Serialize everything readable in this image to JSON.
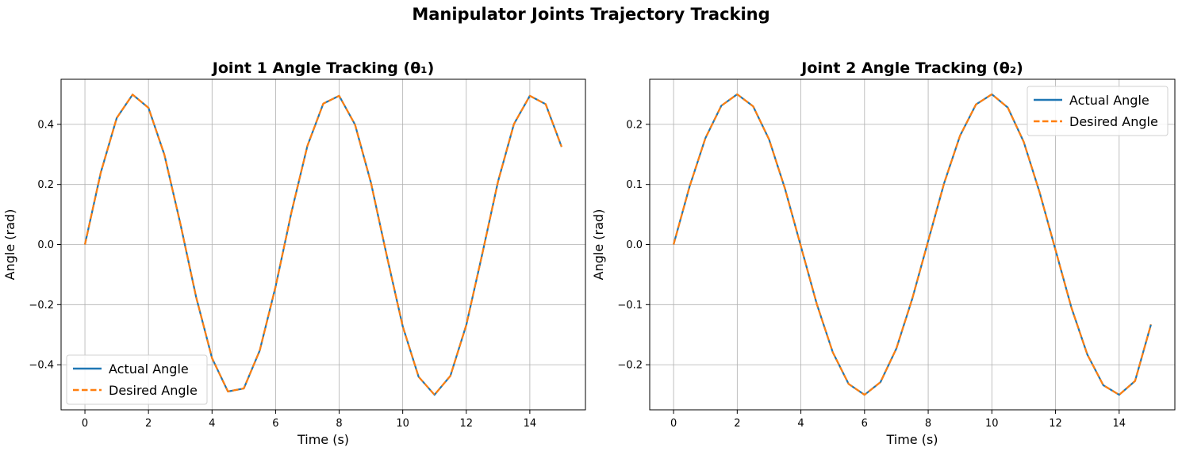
{
  "figure": {
    "title": "Manipulator Joints Trajectory Tracking"
  },
  "chart_data": [
    {
      "type": "line",
      "title": "Joint 1 Angle Tracking (θ₁)",
      "xlabel": "Time (s)",
      "ylabel": "Angle (rad)",
      "xlim": [
        -0.75,
        15.75
      ],
      "ylim": [
        -0.55,
        0.55
      ],
      "xticks": [
        0,
        2,
        4,
        6,
        8,
        10,
        12,
        14
      ],
      "yticks": [
        -0.4,
        -0.2,
        0.0,
        0.2,
        0.4
      ],
      "xtick_labels": [
        "0",
        "2",
        "4",
        "6",
        "8",
        "10",
        "12",
        "14"
      ],
      "ytick_labels": [
        "−0.4",
        "−0.2",
        "0.0",
        "0.2",
        "0.4"
      ],
      "grid": true,
      "legend_position": "lower-left",
      "series": [
        {
          "name": "Actual Angle",
          "color": "#1f77b4",
          "style": "solid",
          "x": [
            0,
            0.5,
            1,
            1.5,
            2,
            2.5,
            3,
            3.5,
            4,
            4.5,
            5,
            5.5,
            6,
            6.5,
            7,
            7.5,
            8,
            8.5,
            9,
            9.5,
            10,
            10.5,
            11,
            11.5,
            12,
            12.5,
            13,
            13.5,
            14,
            14.5,
            15
          ],
          "values": [
            0,
            0.24,
            0.421,
            0.499,
            0.455,
            0.299,
            0.071,
            -0.175,
            -0.378,
            -0.489,
            -0.479,
            -0.353,
            -0.14,
            0.108,
            0.328,
            0.469,
            0.495,
            0.399,
            0.206,
            -0.038,
            -0.272,
            -0.44,
            -0.5,
            -0.437,
            -0.268,
            -0.033,
            0.21,
            0.401,
            0.495,
            0.467,
            0.325
          ]
        },
        {
          "name": "Desired Angle",
          "color": "#ff7f0e",
          "style": "dashed",
          "x": [
            0,
            0.5,
            1,
            1.5,
            2,
            2.5,
            3,
            3.5,
            4,
            4.5,
            5,
            5.5,
            6,
            6.5,
            7,
            7.5,
            8,
            8.5,
            9,
            9.5,
            10,
            10.5,
            11,
            11.5,
            12,
            12.5,
            13,
            13.5,
            14,
            14.5,
            15
          ],
          "values": [
            0,
            0.24,
            0.421,
            0.499,
            0.455,
            0.299,
            0.071,
            -0.175,
            -0.378,
            -0.489,
            -0.479,
            -0.353,
            -0.14,
            0.108,
            0.328,
            0.469,
            0.495,
            0.399,
            0.206,
            -0.038,
            -0.272,
            -0.44,
            -0.5,
            -0.437,
            -0.268,
            -0.033,
            0.21,
            0.401,
            0.495,
            0.467,
            0.325
          ]
        }
      ]
    },
    {
      "type": "line",
      "title": "Joint 2 Angle Tracking (θ₂)",
      "xlabel": "Time (s)",
      "ylabel": "Angle (rad)",
      "xlim": [
        -0.75,
        15.75
      ],
      "ylim": [
        -0.275,
        0.275
      ],
      "xticks": [
        0,
        2,
        4,
        6,
        8,
        10,
        12,
        14
      ],
      "yticks": [
        -0.2,
        -0.1,
        0.0,
        0.1,
        0.2
      ],
      "xtick_labels": [
        "0",
        "2",
        "4",
        "6",
        "8",
        "10",
        "12",
        "14"
      ],
      "ytick_labels": [
        "−0.2",
        "−0.1",
        "0.0",
        "0.1",
        "0.2"
      ],
      "grid": true,
      "legend_position": "upper-right",
      "series": [
        {
          "name": "Actual Angle",
          "color": "#1f77b4",
          "style": "solid",
          "x": [
            0,
            0.5,
            1,
            1.5,
            2,
            2.5,
            3,
            3.5,
            4,
            4.5,
            5,
            5.5,
            6,
            6.5,
            7,
            7.5,
            8,
            8.5,
            9,
            9.5,
            10,
            10.5,
            11,
            11.5,
            12,
            12.5,
            13,
            13.5,
            14,
            14.5,
            15
          ],
          "values": [
            0,
            0.096,
            0.177,
            0.231,
            0.25,
            0.23,
            0.175,
            0.093,
            -0.003,
            -0.099,
            -0.179,
            -0.232,
            -0.25,
            -0.229,
            -0.173,
            -0.09,
            0.006,
            0.102,
            0.181,
            0.233,
            0.25,
            0.228,
            0.171,
            0.087,
            -0.009,
            -0.105,
            -0.183,
            -0.234,
            -0.25,
            -0.227,
            -0.133
          ]
        },
        {
          "name": "Desired Angle",
          "color": "#ff7f0e",
          "style": "dashed",
          "x": [
            0,
            0.5,
            1,
            1.5,
            2,
            2.5,
            3,
            3.5,
            4,
            4.5,
            5,
            5.5,
            6,
            6.5,
            7,
            7.5,
            8,
            8.5,
            9,
            9.5,
            10,
            10.5,
            11,
            11.5,
            12,
            12.5,
            13,
            13.5,
            14,
            14.5,
            15
          ],
          "values": [
            0,
            0.096,
            0.177,
            0.231,
            0.25,
            0.23,
            0.175,
            0.093,
            -0.003,
            -0.099,
            -0.179,
            -0.232,
            -0.25,
            -0.229,
            -0.173,
            -0.09,
            0.006,
            0.102,
            0.181,
            0.233,
            0.25,
            0.228,
            0.171,
            0.087,
            -0.009,
            -0.105,
            -0.183,
            -0.234,
            -0.25,
            -0.227,
            -0.133
          ]
        }
      ]
    }
  ]
}
